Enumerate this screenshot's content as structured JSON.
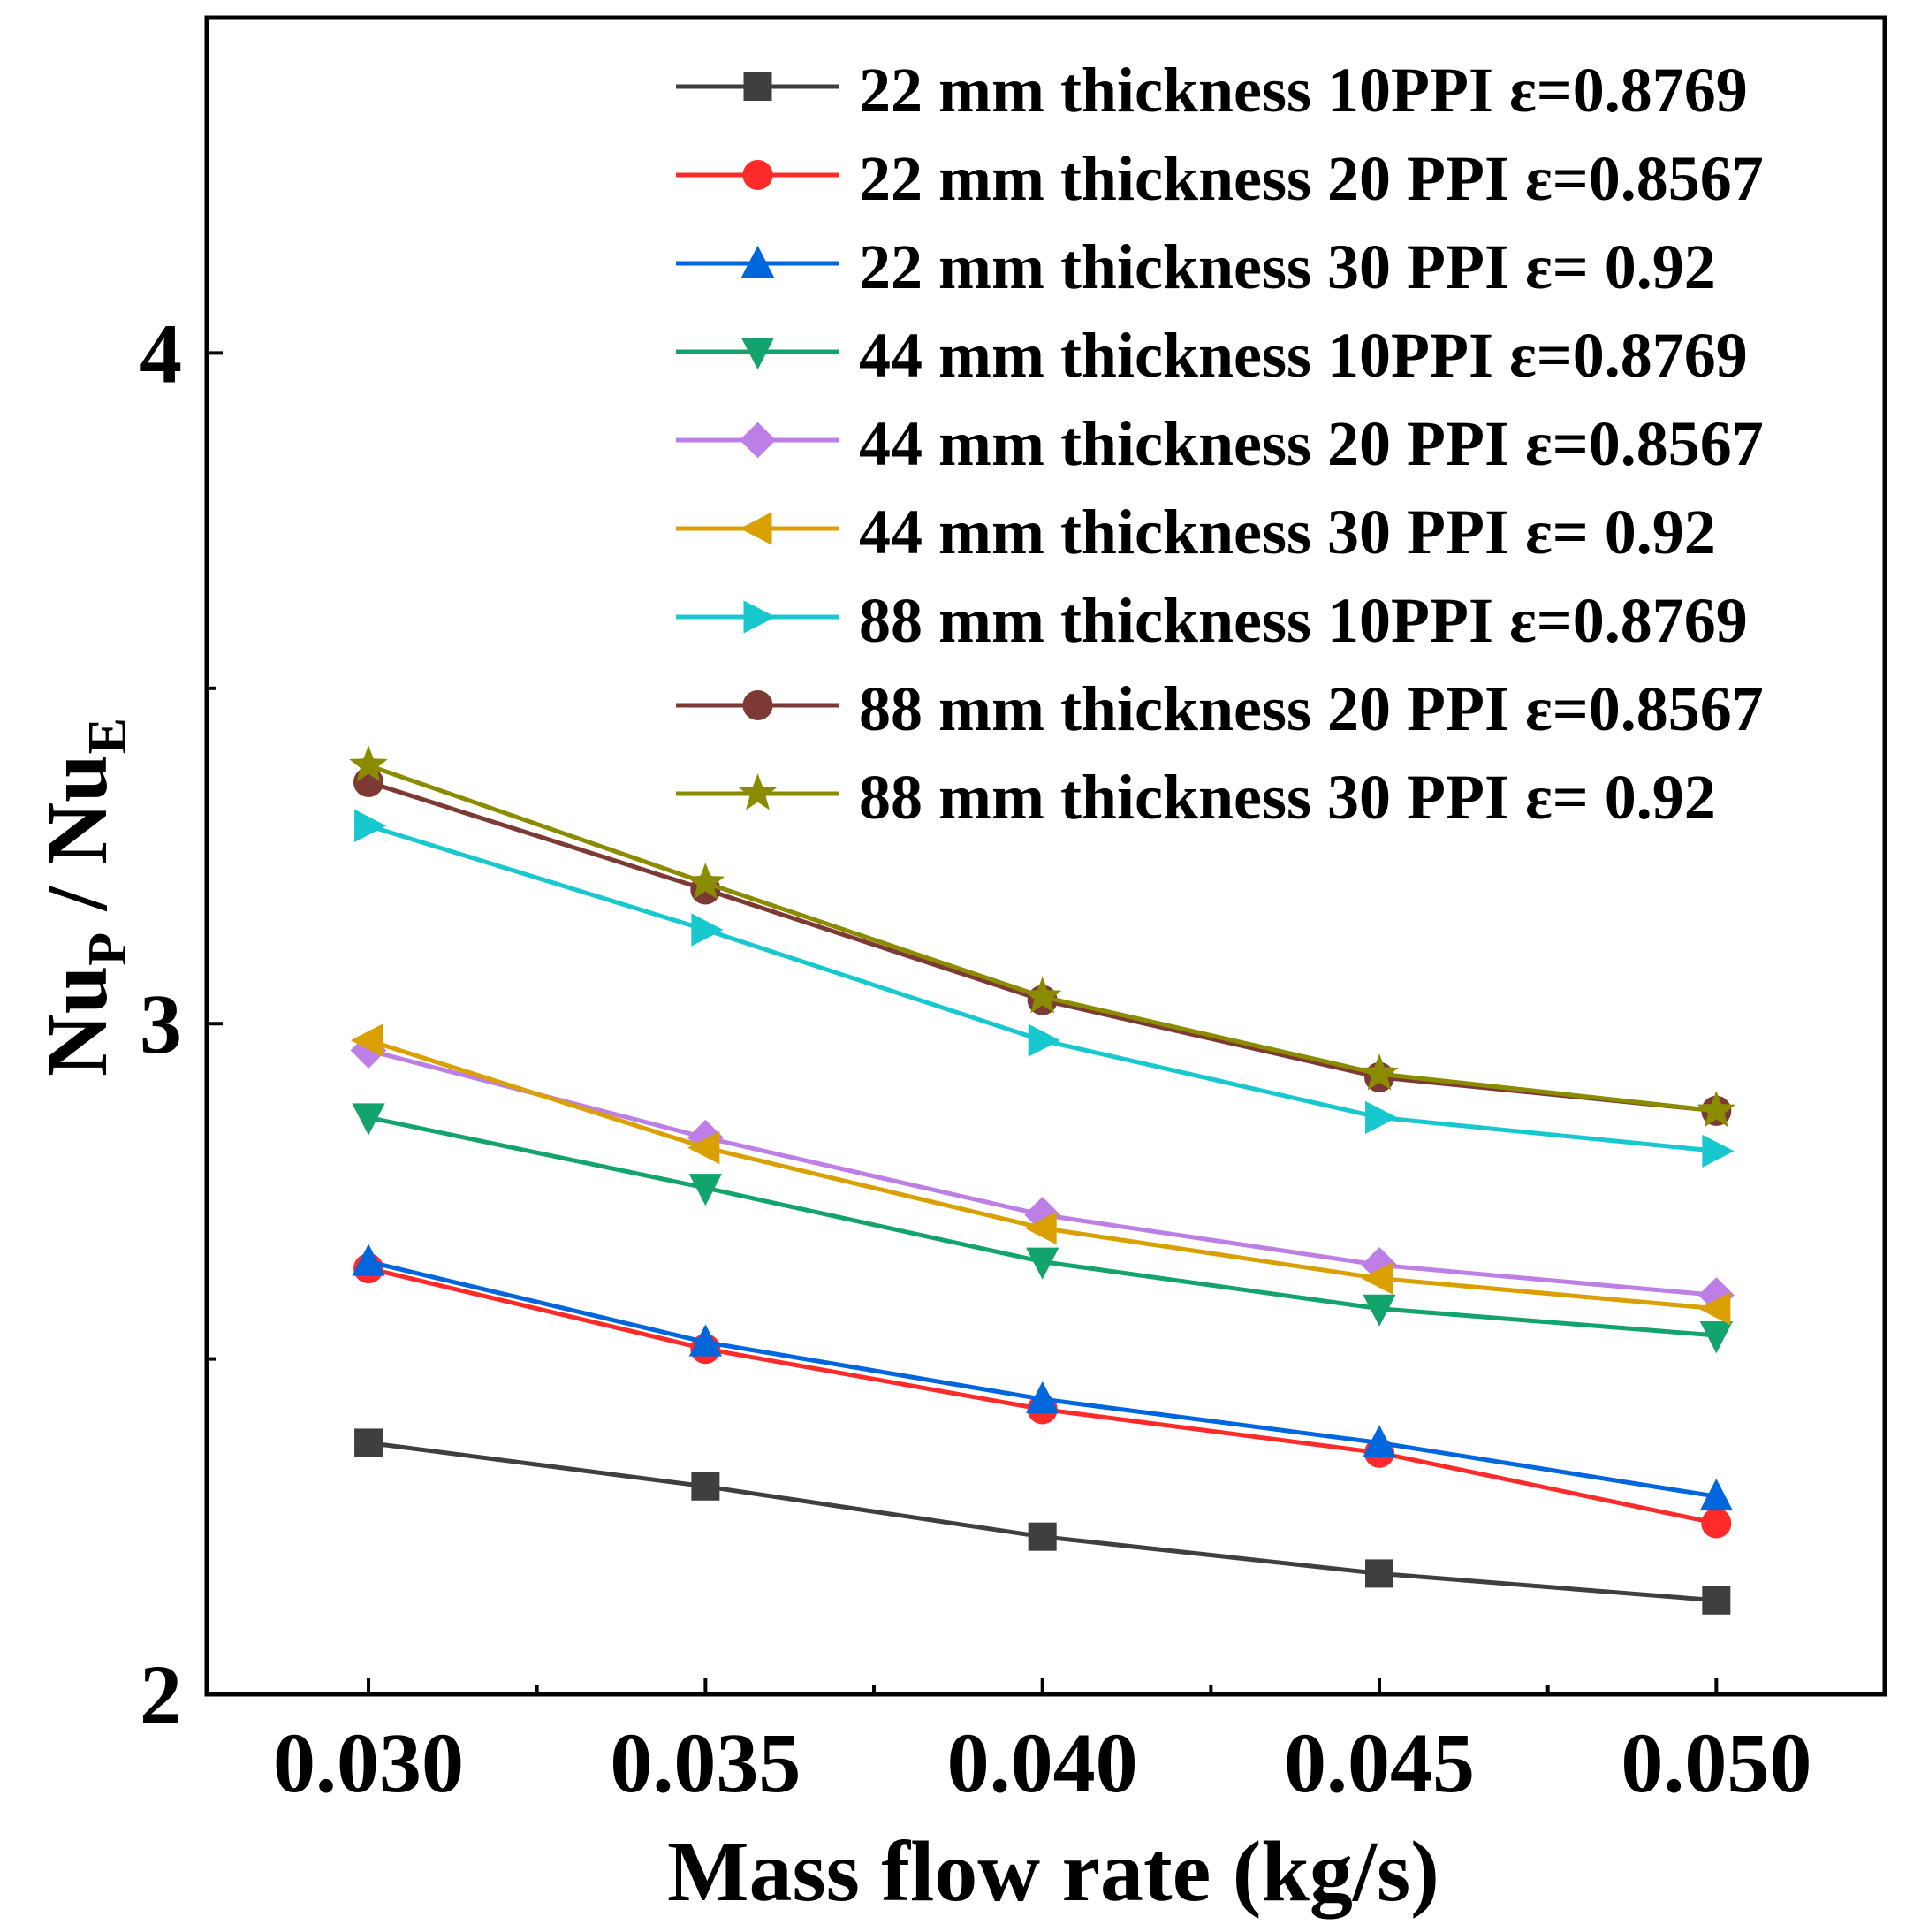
{
  "chart_data": {
    "type": "line",
    "xlabel": "Mass flow rate (kg/s)",
    "ylabel_main": "Nu",
    "ylabel_sub1": "P",
    "ylabel_sep": " / ",
    "ylabel_main2": "Nu",
    "ylabel_sub2": "E",
    "x": [
      0.03,
      0.035,
      0.04,
      0.045,
      0.05
    ],
    "x_tick_labels": [
      "0.030",
      "0.035",
      "0.040",
      "0.045",
      "0.050"
    ],
    "xlim": [
      0.0276,
      0.0525
    ],
    "y_tick_values": [
      2,
      3,
      4
    ],
    "y_tick_labels": [
      "2",
      "3",
      "4"
    ],
    "ylim": [
      2,
      4.5
    ],
    "legend_position": "top-right",
    "series": [
      {
        "name": "22 mm thickness 10PPI ε=0.8769",
        "color": "#3f3f3f",
        "marker": "square",
        "values": [
          2.375,
          2.31,
          2.235,
          2.18,
          2.14
        ]
      },
      {
        "name": "22 mm thickness 20 PPI ε=0.8567",
        "color": "#ff2a2a",
        "marker": "circle",
        "values": [
          2.635,
          2.515,
          2.425,
          2.36,
          2.255
        ]
      },
      {
        "name": "22 mm thickness 30 PPI ε= 0.92",
        "color": "#0066dd",
        "marker": "triangle-up",
        "values": [
          2.645,
          2.525,
          2.44,
          2.375,
          2.295
        ]
      },
      {
        "name": "44 mm thickness 10PPI ε=0.8769",
        "color": "#13a36c",
        "marker": "triangle-down",
        "values": [
          2.86,
          2.755,
          2.645,
          2.575,
          2.535
        ]
      },
      {
        "name": "44 mm thickness 20 PPI ε=0.8567",
        "color": "#bd7fe6",
        "marker": "diamond",
        "values": [
          2.96,
          2.83,
          2.715,
          2.64,
          2.595
        ]
      },
      {
        "name": "44 mm thickness 30 PPI ε= 0.92",
        "color": "#d9a000",
        "marker": "triangle-left",
        "values": [
          2.975,
          2.815,
          2.695,
          2.62,
          2.575
        ]
      },
      {
        "name": "88 mm thickness 10PPI ε=0.8769",
        "color": "#17c9cf",
        "marker": "triangle-right",
        "values": [
          3.295,
          3.14,
          2.975,
          2.86,
          2.81
        ]
      },
      {
        "name": "88 mm thickness 20 PPI ε=0.8567",
        "color": "#7d3a35",
        "marker": "circle",
        "values": [
          3.36,
          3.2,
          3.035,
          2.92,
          2.87
        ]
      },
      {
        "name": "88 mm thickness 30 PPI ε= 0.92",
        "color": "#8b8b00",
        "marker": "star",
        "values": [
          3.385,
          3.21,
          3.04,
          2.925,
          2.87
        ]
      }
    ]
  }
}
